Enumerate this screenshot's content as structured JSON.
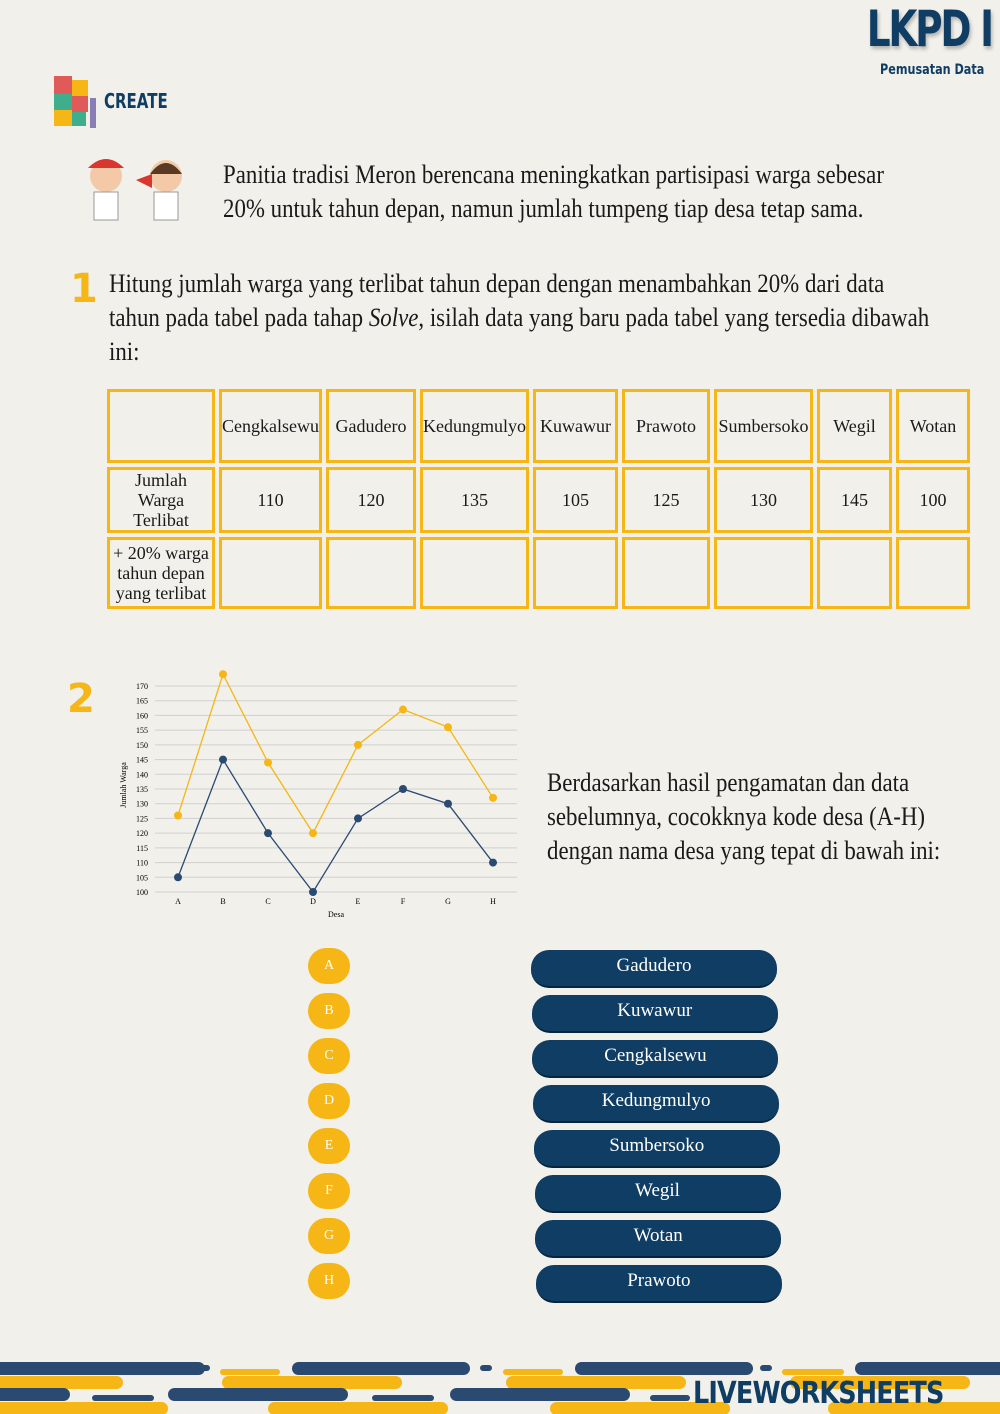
{
  "header": {
    "title": "LKPD I",
    "subtitle": "Pemusatan Data",
    "section": "CREATE"
  },
  "intro": "Panitia tradisi Meron berencana meningkatkan partisipasi warga sebesar 20% untuk tahun depan, namun jumlah tumpeng tiap desa tetap sama.",
  "q1": {
    "number": "1",
    "text_before": "Hitung jumlah warga yang terlibat tahun depan dengan menambahkan 20% dari data tahun pada tabel pada tahap ",
    "text_italic": "Solve",
    "text_after": ", isilah data yang baru pada tabel yang tersedia dibawah ini:"
  },
  "table": {
    "columns": [
      "Cengkalsewu",
      "Gadudero",
      "Kedungmulyo",
      "Kuwawur",
      "Prawoto",
      "Sumbersoko",
      "Wegil",
      "Wotan"
    ],
    "rows": [
      {
        "label": "Jumlah Warga Terlibat",
        "values": [
          "110",
          "120",
          "135",
          "105",
          "125",
          "130",
          "145",
          "100"
        ]
      },
      {
        "label": "+ 20% warga tahun depan yang terlibat",
        "values": [
          "",
          "",
          "",
          "",
          "",
          "",
          "",
          ""
        ]
      }
    ]
  },
  "q2": {
    "number": "2",
    "text": "Berdasarkan hasil pengamatan dan data sebelumnya, cocokknya kode desa (A-H) dengan nama desa yang tepat di bawah ini:"
  },
  "chart_data": {
    "type": "line",
    "categories": [
      "A",
      "B",
      "C",
      "D",
      "E",
      "F",
      "G",
      "H"
    ],
    "xlabel": "Desa",
    "ylabel": "Jumlah Warga",
    "ylim": [
      100,
      170
    ],
    "yticks": [
      100,
      105,
      110,
      115,
      120,
      125,
      130,
      135,
      140,
      145,
      150,
      155,
      160,
      165,
      170
    ],
    "grid": true,
    "series": [
      {
        "color": "#2b4a72",
        "values": [
          105,
          145,
          120,
          100,
          125,
          135,
          130,
          110
        ]
      },
      {
        "color": "#f5b616",
        "values": [
          126,
          174,
          144,
          120,
          150,
          162,
          156,
          132
        ]
      }
    ]
  },
  "match": {
    "codes": [
      "A",
      "B",
      "C",
      "D",
      "E",
      "F",
      "G",
      "H"
    ],
    "names": [
      "Gadudero",
      "Kuwawur",
      "Cengkalsewu",
      "Kedungmulyo",
      "Sumbersoko",
      "Wegil",
      "Wotan",
      "Prawoto"
    ]
  },
  "footer": {
    "brand": "LIVEWORKSHEETS"
  },
  "colors": {
    "navy": "#0f3d63",
    "yellow": "#f5b616"
  }
}
